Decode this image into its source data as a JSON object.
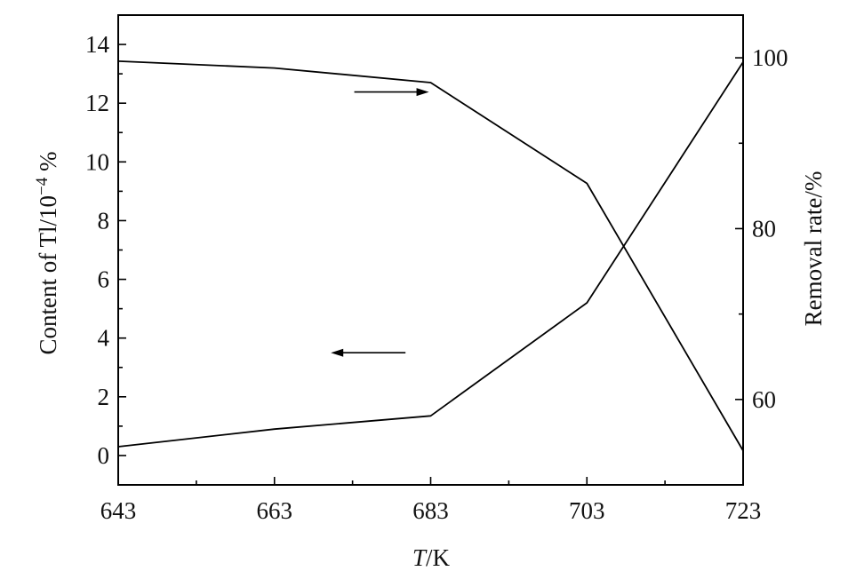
{
  "chart_data": {
    "type": "line",
    "xlabel_italic": "T",
    "xlabel_rest": "/K",
    "ylabel_left_base": "Content of Tl/10",
    "ylabel_left_exp": "−4",
    "ylabel_left_unit": " %",
    "ylabel_right": "Removal rate/%",
    "x_ticks": [
      643,
      663,
      683,
      703,
      723
    ],
    "x_ticks_text": [
      "643",
      "663",
      "683",
      "703",
      "723"
    ],
    "xlim": [
      643,
      723
    ],
    "y_left_ticks_text": [
      "0",
      "2",
      "4",
      "6",
      "8",
      "10",
      "12",
      "14"
    ],
    "y_left_ticks": [
      0,
      2,
      4,
      6,
      8,
      10,
      12,
      14
    ],
    "y_left_lim": [
      -1,
      15
    ],
    "y_right_ticks_text": [
      "60",
      "80",
      "100"
    ],
    "y_right_ticks": [
      60,
      80,
      100
    ],
    "y_right_lim": [
      50,
      105
    ],
    "series": [
      {
        "axis": "left",
        "x": [
          643,
          663,
          683,
          703,
          723
        ],
        "y": [
          0.3,
          0.9,
          1.35,
          5.2,
          13.4
        ]
      },
      {
        "axis": "right",
        "x": [
          643,
          663,
          683,
          703,
          723
        ],
        "y": [
          99.6,
          98.8,
          97.1,
          85.3,
          54.0
        ]
      }
    ],
    "annotations": [
      {
        "type": "arrow",
        "direction": "right",
        "points_to_axis": "right",
        "at": {
          "x": 678,
          "y_right": 96
        }
      },
      {
        "type": "arrow",
        "direction": "left",
        "points_to_axis": "left",
        "at": {
          "x": 675,
          "y_left": 3.5
        }
      }
    ],
    "grid": false,
    "legend": "none"
  }
}
